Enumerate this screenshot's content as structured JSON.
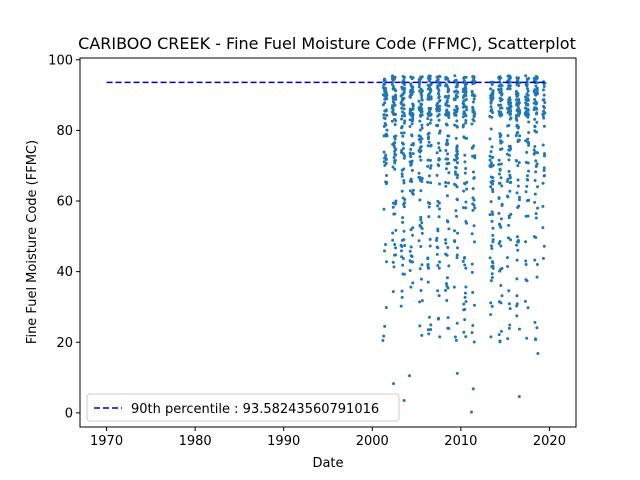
{
  "chart_data": {
    "type": "scatter",
    "title": "CARIBOO CREEK - Fine Fuel Moisture Code (FFMC), Scatterplot",
    "xlabel": "Date",
    "ylabel": "Fine Fuel Moisture Code (FFMC)",
    "xlim": [
      1967,
      2023
    ],
    "ylim": [
      -4,
      100.5
    ],
    "xticks": [
      1970,
      1980,
      1990,
      2000,
      2010,
      2020
    ],
    "yticks": [
      0,
      20,
      40,
      60,
      80,
      100
    ],
    "grid": false,
    "legend_position": "lower-left",
    "series": [
      {
        "kind": "points",
        "color": "#1f77b4",
        "seasons": [
          {
            "year": 2001,
            "months": 5,
            "count": 65
          },
          {
            "year": 2002,
            "months": 5,
            "count": 75
          },
          {
            "year": 2003,
            "months": 5,
            "count": 80
          },
          {
            "year": 2004,
            "months": 5,
            "count": 80
          },
          {
            "year": 2005,
            "months": 5,
            "count": 80
          },
          {
            "year": 2006,
            "months": 5,
            "count": 80
          },
          {
            "year": 2007,
            "months": 5,
            "count": 75
          },
          {
            "year": 2008,
            "months": 5,
            "count": 75
          },
          {
            "year": 2009,
            "months": 5,
            "count": 75
          },
          {
            "year": 2010,
            "months": 5,
            "count": 75
          },
          {
            "year": 2011,
            "months": 4,
            "count": 55
          },
          {
            "year": 2013,
            "months": 5,
            "count": 70
          },
          {
            "year": 2014,
            "months": 5,
            "count": 75
          },
          {
            "year": 2015,
            "months": 5,
            "count": 75
          },
          {
            "year": 2016,
            "months": 5,
            "count": 75
          },
          {
            "year": 2017,
            "months": 5,
            "count": 70
          },
          {
            "year": 2018,
            "months": 5,
            "count": 70
          },
          {
            "year": 2019,
            "months": 3,
            "count": 30
          }
        ],
        "notable_points": [
          {
            "x": 2011.2,
            "y": 0.2
          },
          {
            "x": 2003.6,
            "y": 3.5
          },
          {
            "x": 2016.6,
            "y": 4.6
          },
          {
            "x": 2002.4,
            "y": 8.3
          },
          {
            "x": 2011.4,
            "y": 6.8
          },
          {
            "x": 2004.2,
            "y": 10.5
          },
          {
            "x": 2009.6,
            "y": 11.2
          },
          {
            "x": 2018.7,
            "y": 16.8
          },
          {
            "x": 2001.2,
            "y": 20.5
          }
        ]
      },
      {
        "name": "90th percentile : 93.58243560791016",
        "kind": "reference_line",
        "style": "dashed",
        "color": "#0000cc",
        "x": [
          1970,
          2019.5
        ],
        "y": 93.58243560791016
      }
    ]
  }
}
